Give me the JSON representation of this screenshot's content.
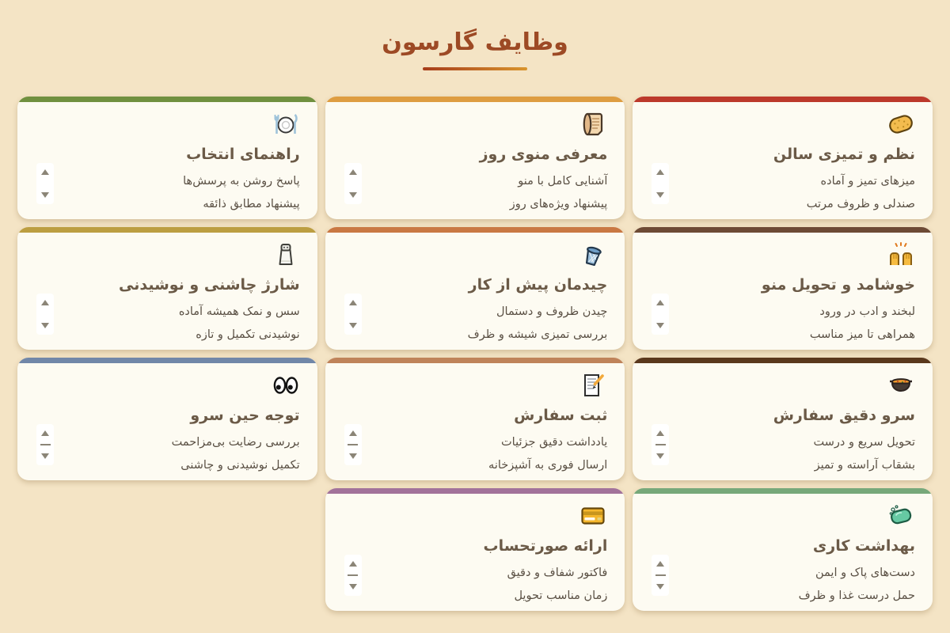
{
  "page": {
    "title": "وظایف گارسون",
    "background_color": "#f4e4c5",
    "title_color": "#9d4a25",
    "underline_gradient": [
      "#a63c1b",
      "#d9952d"
    ]
  },
  "cards": [
    {
      "title": "نظم و تمیزی سالن",
      "icon": "sponge-icon",
      "emoji": "🧽",
      "accent": "#bc392b",
      "points": [
        "میزهای تمیز و آماده",
        "صندلی و ظروف مرتب"
      ],
      "scrollbar_thumb": false
    },
    {
      "title": "معرفی منوی روز",
      "icon": "scroll-icon",
      "emoji": "📜",
      "accent": "#de9d41",
      "points": [
        "آشنایی کامل با منو",
        "پیشنهاد ویژه‌های روز"
      ],
      "scrollbar_thumb": false
    },
    {
      "title": "راهنمای انتخاب",
      "icon": "fork-knife-plate-icon",
      "emoji": "🍽️",
      "accent": "#70903f",
      "points": [
        "پاسخ روشن به پرسش‌ها",
        "پیشنهاد مطابق ذائقه"
      ],
      "scrollbar_thumb": false
    },
    {
      "title": "خوشامد و تحویل منو",
      "icon": "raising-hands-icon",
      "emoji": "🙌",
      "accent": "#6d4a35",
      "points": [
        "لبخند و ادب در ورود",
        "همراهی تا میز مناسب"
      ],
      "scrollbar_thumb": false
    },
    {
      "title": "چیدمان پیش از کار",
      "icon": "wastebasket-icon",
      "emoji": "🗑️",
      "accent": "#c97843",
      "points": [
        "چیدن ظروف و دستمال",
        "بررسی تمیزی شیشه و ظرف"
      ],
      "scrollbar_thumb": false
    },
    {
      "title": "شارژ چاشنی و نوشیدنی",
      "icon": "salt-shaker-icon",
      "emoji": "🧂",
      "accent": "#bc9e41",
      "points": [
        "سس و نمک همیشه آماده",
        "نوشیدنی تکمیل و تازه"
      ],
      "scrollbar_thumb": false
    },
    {
      "title": "سرو دقیق سفارش",
      "icon": "pot-of-food-icon",
      "emoji": "🍲",
      "accent": "#5a381d",
      "points": [
        "تحویل سریع و درست",
        "بشقاب آراسته و تمیز"
      ],
      "scrollbar_thumb": true
    },
    {
      "title": "ثبت سفارش",
      "icon": "memo-icon",
      "emoji": "📝",
      "accent": "#bf835a",
      "points": [
        "یادداشت دقیق جزئیات",
        "ارسال فوری به آشپزخانه"
      ],
      "scrollbar_thumb": true
    },
    {
      "title": "توجه حین سرو",
      "icon": "eyes-icon",
      "emoji": "👀",
      "accent": "#7187a8",
      "points": [
        "بررسی رضایت بی‌مزاحمت",
        "تکمیل نوشیدنی و چاشنی"
      ],
      "scrollbar_thumb": true
    },
    {
      "title": "بهداشت کاری",
      "icon": "soap-icon",
      "emoji": "🧼",
      "accent": "#77a87a",
      "points": [
        "دست‌های پاک و ایمن",
        "حمل درست غذا و ظرف"
      ],
      "scrollbar_thumb": true
    },
    {
      "title": "ارائه صورتحساب",
      "icon": "credit-card-icon",
      "emoji": "💳",
      "accent": "#a2729a",
      "points": [
        "فاکتور شفاف و دقیق",
        "زمان مناسب تحویل"
      ],
      "scrollbar_thumb": true
    }
  ]
}
